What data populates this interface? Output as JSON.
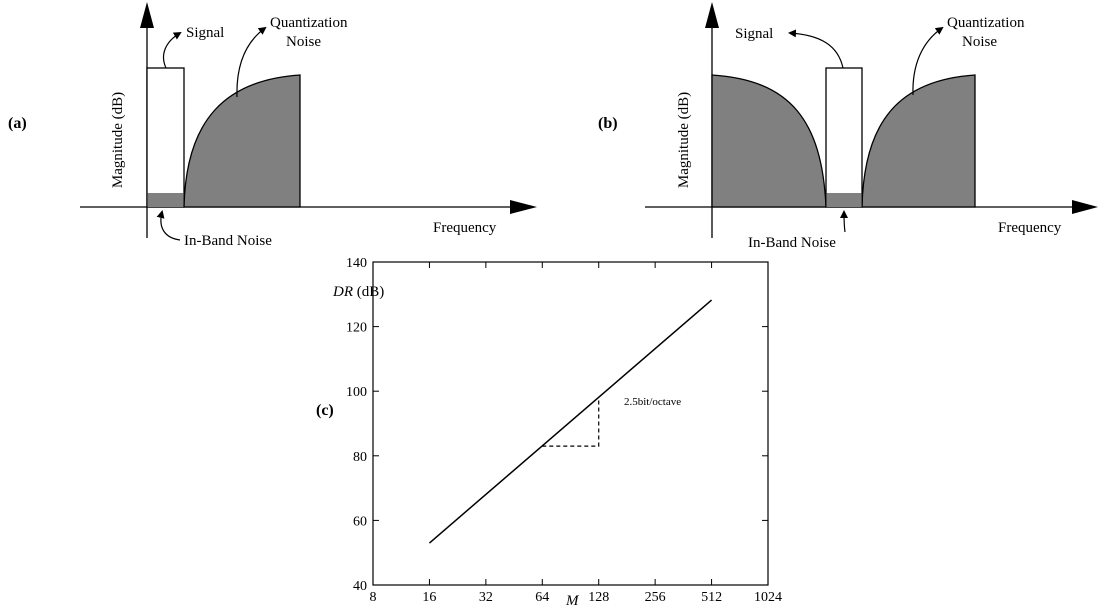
{
  "panel_a": {
    "label": "(a)",
    "ylabel": "Magnitude (dB)",
    "xlabel": "Frequency",
    "signal": "Signal",
    "noise_line1": "Quantization",
    "noise_line2": "Noise",
    "inband": "In-Band Noise"
  },
  "panel_b": {
    "label": "(b)",
    "ylabel": "Magnitude (dB)",
    "xlabel": "Frequency",
    "signal": "Signal",
    "noise_line1": "Quantization",
    "noise_line2": "Noise",
    "inband": "In-Band Noise"
  },
  "panel_c": {
    "label": "(c)",
    "annotation": "2.5bit/octave"
  },
  "chart_data": {
    "type": "line",
    "ylabel_italic": "DR",
    "ylabel_unit": " (dB)",
    "xlabel": "M",
    "x_scale": "log2",
    "x_ticks": [
      8,
      16,
      32,
      64,
      128,
      256,
      512,
      1024
    ],
    "y_ticks": [
      40,
      60,
      80,
      100,
      120,
      140
    ],
    "xlim": [
      8,
      1024
    ],
    "ylim": [
      40,
      140
    ],
    "series": [
      {
        "x": [
          16,
          512
        ],
        "y": [
          53,
          128.2
        ]
      }
    ],
    "slope_marker": {
      "x": [
        64,
        128
      ],
      "y": [
        83,
        98
      ]
    },
    "colors": {
      "line": "#000000",
      "noise_fill": "#808080"
    }
  }
}
